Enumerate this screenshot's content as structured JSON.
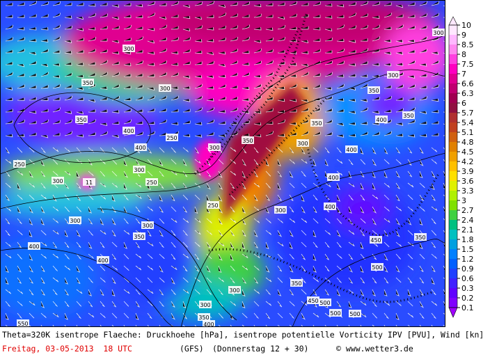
{
  "map": {
    "colorbar": {
      "labels": [
        "10",
        "9",
        "8.5",
        "8",
        "7.5",
        "7",
        "6.6",
        "6.3",
        "6",
        "5.7",
        "5.4",
        "5.1",
        "4.8",
        "4.5",
        "4.2",
        "3.9",
        "3.6",
        "3.3",
        "3",
        "2.7",
        "2.4",
        "2.1",
        "1.8",
        "1.5",
        "1.2",
        "0.9",
        "0.6",
        "0.3",
        "0.2",
        "0.1"
      ]
    },
    "contour_labels": [
      "300",
      "300",
      "350",
      "300",
      "350",
      "400",
      "350",
      "250",
      "300",
      "300",
      "250",
      "250",
      "300",
      "350",
      "400",
      "400",
      "300",
      "350",
      "400",
      "300",
      "400",
      "350",
      "400",
      "450",
      "500",
      "500",
      "550",
      "350",
      "300",
      "300",
      "400",
      "350",
      "300",
      "400",
      "450",
      "500",
      "500",
      "350",
      "300",
      "250",
      "300",
      "400",
      "350",
      "11"
    ],
    "caption": {
      "line1": "Theta=320K isentrope Flaeche: Druckhoehe [hPa], isentrope potentielle Vorticity IPV [PVU], Wind [kn]",
      "date": "Freitag, 03-05-2013  18 UTC",
      "model": "(GFS)",
      "run": "(Donnerstag 12 + 30)",
      "credit": "© www.wetter3.de"
    }
  }
}
